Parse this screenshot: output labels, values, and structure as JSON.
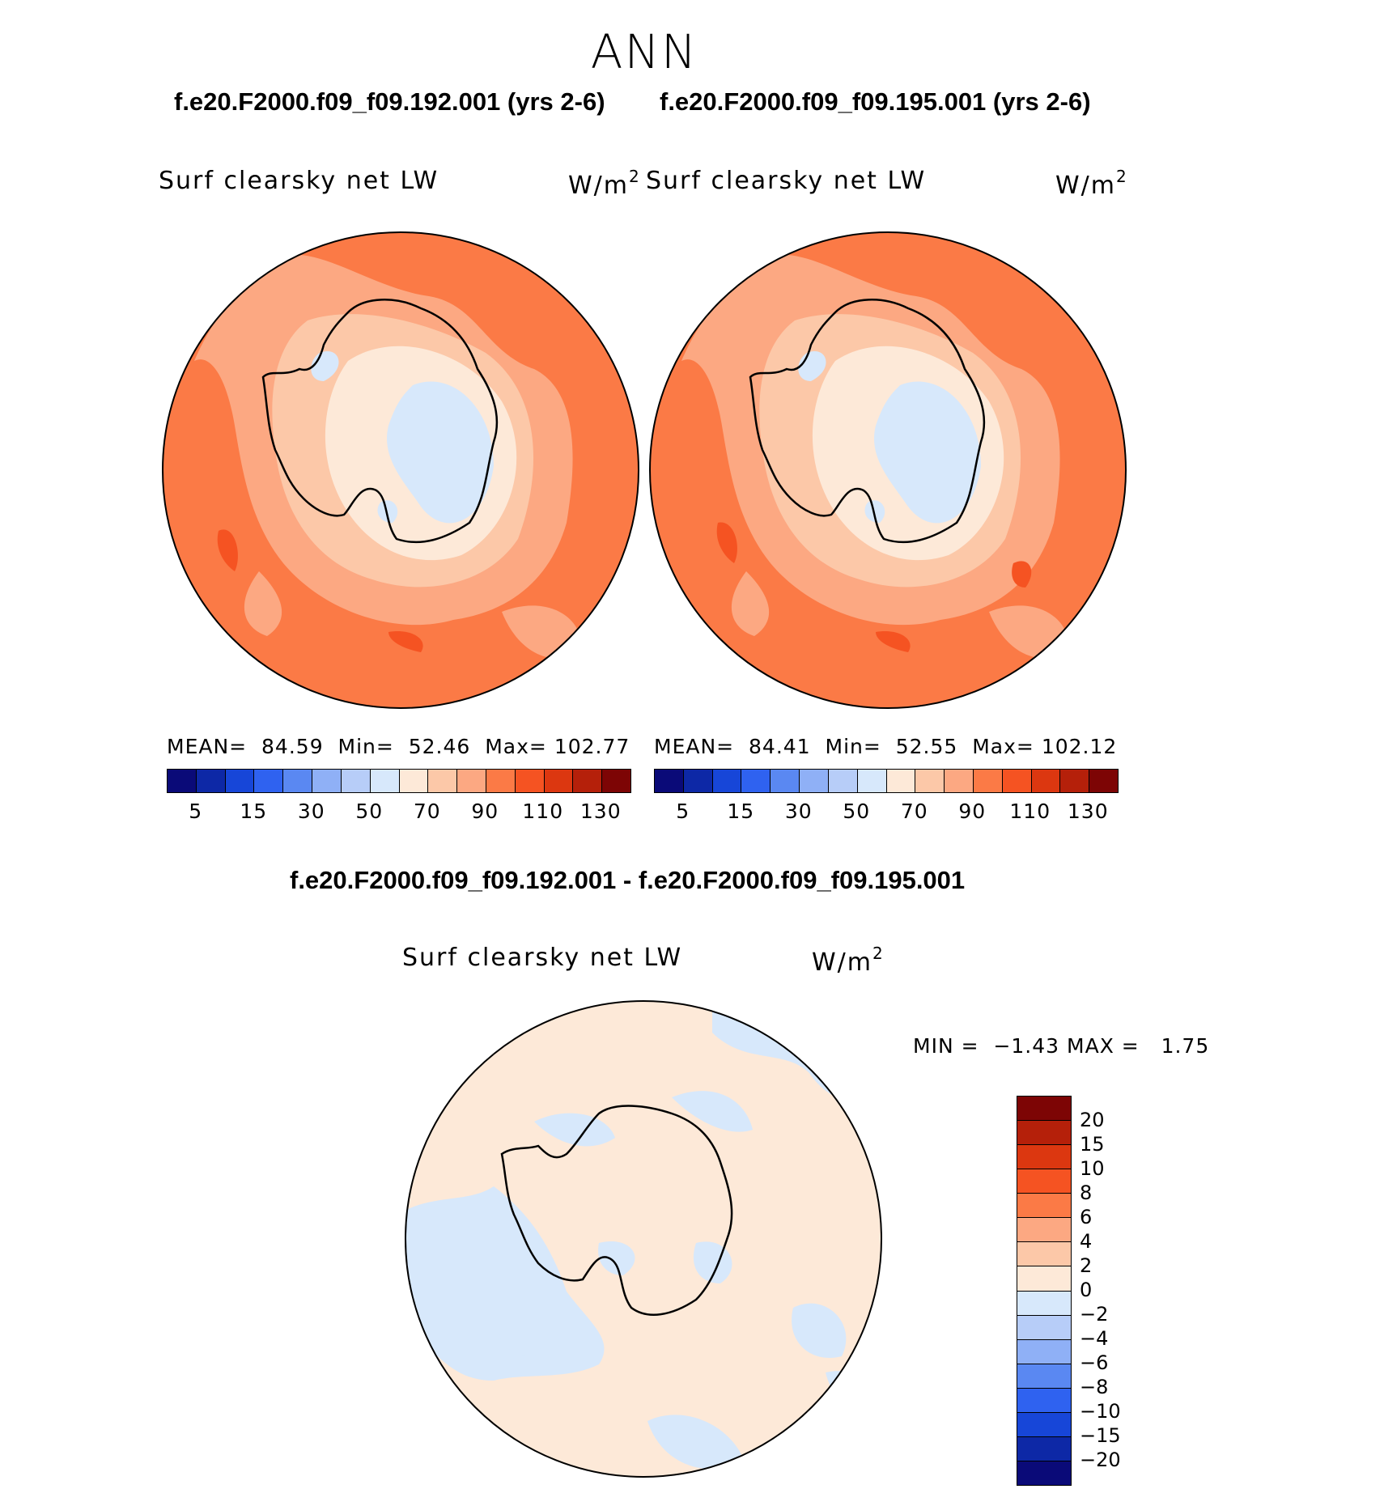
{
  "season": "ANN",
  "cases": {
    "left_title": "f.e20.F2000.f09_f09.192.001 (yrs 2-6)",
    "right_title": "f.e20.F2000.f09_f09.195.001 (yrs 2-6)"
  },
  "panels": [
    {
      "variable": "Surf clearsky net LW",
      "units": "W/m",
      "units_exp": "2",
      "mean_label": "MEAN=",
      "mean": "84.59",
      "min_label": "Min=",
      "min": "52.46",
      "max_label": "Max=",
      "max": "102.77"
    },
    {
      "variable": "Surf clearsky net LW",
      "units": "W/m",
      "units_exp": "2",
      "mean_label": "MEAN=",
      "mean": "84.41",
      "min_label": "Min=",
      "min": "52.55",
      "max_label": "Max=",
      "max": "102.12"
    }
  ],
  "colorbar": {
    "colors": [
      "#0a0a78",
      "#0d28a6",
      "#1746d8",
      "#2f62f0",
      "#5a88f2",
      "#8fb0f6",
      "#b7cdf8",
      "#d7e8fb",
      "#fde9d8",
      "#fcc8a8",
      "#fca882",
      "#fb7a46",
      "#f55322",
      "#dc3710",
      "#b5200a",
      "#7d0505"
    ],
    "tick_labels": [
      "5",
      "15",
      "30",
      "50",
      "70",
      "90",
      "110",
      "130"
    ]
  },
  "difference": {
    "title": "f.e20.F2000.f09_f09.192.001 - f.e20.F2000.f09_f09.195.001",
    "variable": "Surf clearsky net LW",
    "units": "W/m",
    "units_exp": "2",
    "min_label": "MIN =",
    "min": "−1.43",
    "max_label": "MAX =",
    "max": "1.75",
    "colorbar": {
      "colors": [
        "#7d0505",
        "#b5200a",
        "#dc3710",
        "#f55322",
        "#fb7a46",
        "#fca882",
        "#fcc8a8",
        "#fde9d8",
        "#d7e8fb",
        "#b7cdf8",
        "#8fb0f6",
        "#5a88f2",
        "#2f62f0",
        "#1746d8",
        "#0d28a6",
        "#0a0a78"
      ],
      "tick_labels": [
        "20",
        "15",
        "10",
        "8",
        "6",
        "4",
        "2",
        "0",
        "−2",
        "−4",
        "−6",
        "−8",
        "−10",
        "−15",
        "−20"
      ]
    }
  }
}
